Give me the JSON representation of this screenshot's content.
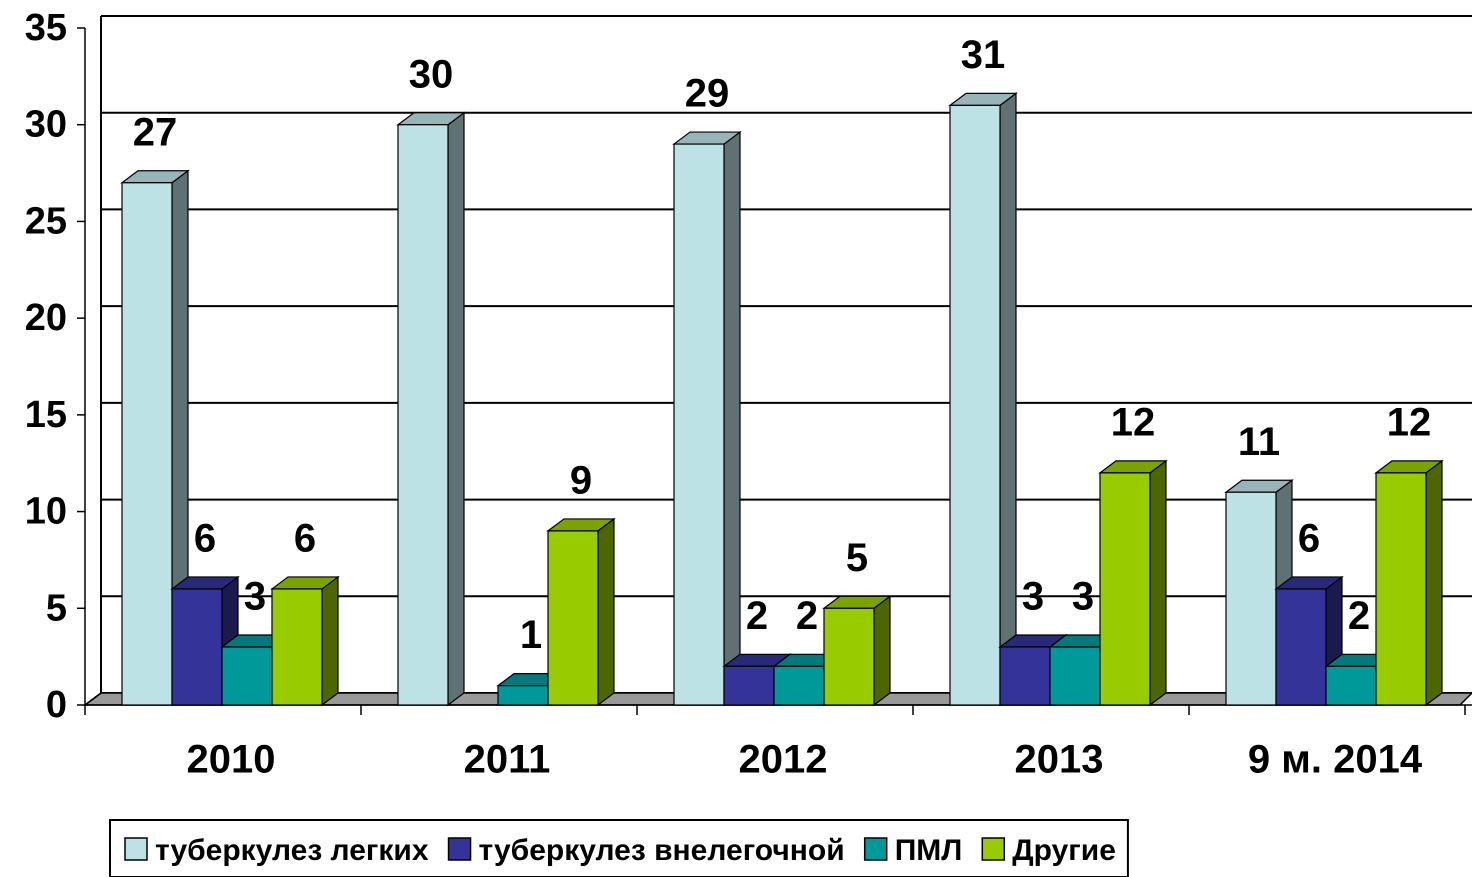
{
  "chart_data": {
    "type": "bar3d",
    "categories": [
      "2010",
      "2011",
      "2012",
      "2013",
      "9 м. 2014"
    ],
    "series": [
      {
        "name": "туберкулез легких",
        "color": "#bde2e6",
        "values": [
          27,
          30,
          29,
          31,
          11
        ]
      },
      {
        "name": "туберкулез внелегочной",
        "color": "#333399",
        "values": [
          6,
          null,
          2,
          3,
          6
        ]
      },
      {
        "name": "ПМЛ",
        "color": "#009999",
        "values": [
          3,
          1,
          2,
          3,
          2
        ]
      },
      {
        "name": "Другие",
        "color": "#99cc00",
        "values": [
          6,
          9,
          5,
          12,
          12
        ]
      }
    ],
    "ylim": [
      0,
      35
    ],
    "yticks": [
      0,
      5,
      10,
      15,
      20,
      25,
      30,
      35
    ],
    "grid": true,
    "legend": "bottom"
  }
}
